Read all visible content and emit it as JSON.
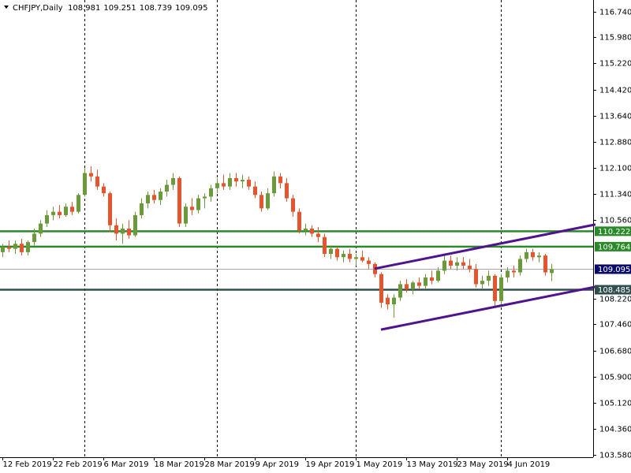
{
  "chart_data": {
    "type": "candlestick",
    "title": "CHFJPY,Daily",
    "header_values": [
      108.981,
      109.251,
      108.739,
      109.095
    ],
    "x": [
      "2019-02-12",
      "2019-02-13",
      "2019-02-14",
      "2019-02-15",
      "2019-02-18",
      "2019-02-19",
      "2019-02-20",
      "2019-02-21",
      "2019-02-22",
      "2019-02-25",
      "2019-02-26",
      "2019-02-27",
      "2019-02-28",
      "2019-03-01",
      "2019-03-04",
      "2019-03-05",
      "2019-03-06",
      "2019-03-07",
      "2019-03-08",
      "2019-03-11",
      "2019-03-12",
      "2019-03-13",
      "2019-03-14",
      "2019-03-15",
      "2019-03-18",
      "2019-03-19",
      "2019-03-20",
      "2019-03-21",
      "2019-03-22",
      "2019-03-25",
      "2019-03-26",
      "2019-03-27",
      "2019-03-28",
      "2019-03-29",
      "2019-04-01",
      "2019-04-02",
      "2019-04-03",
      "2019-04-04",
      "2019-04-05",
      "2019-04-08",
      "2019-04-09",
      "2019-04-10",
      "2019-04-11",
      "2019-04-12",
      "2019-04-15",
      "2019-04-16",
      "2019-04-17",
      "2019-04-18",
      "2019-04-19",
      "2019-04-22",
      "2019-04-23",
      "2019-04-24",
      "2019-04-25",
      "2019-04-26",
      "2019-04-29",
      "2019-04-30",
      "2019-05-01",
      "2019-05-02",
      "2019-05-03",
      "2019-05-06",
      "2019-05-07",
      "2019-05-08",
      "2019-05-09",
      "2019-05-10",
      "2019-05-13",
      "2019-05-14",
      "2019-05-15",
      "2019-05-16",
      "2019-05-17",
      "2019-05-20",
      "2019-05-21",
      "2019-05-22",
      "2019-05-23",
      "2019-05-24",
      "2019-05-27",
      "2019-05-28",
      "2019-05-29",
      "2019-05-30",
      "2019-05-31",
      "2019-06-03",
      "2019-06-04",
      "2019-06-05",
      "2019-06-06",
      "2019-06-07",
      "2019-06-10",
      "2019-06-11",
      "2019-06-12",
      "2019-06-13"
    ],
    "open": [
      109.6,
      109.75,
      109.7,
      109.85,
      109.6,
      109.9,
      110.15,
      110.45,
      110.7,
      110.8,
      110.7,
      110.95,
      110.8,
      111.3,
      111.95,
      111.85,
      111.55,
      111.35,
      110.4,
      110.15,
      110.3,
      110.1,
      110.7,
      111.05,
      111.3,
      111.15,
      111.4,
      111.6,
      111.8,
      110.45,
      110.95,
      110.85,
      111.2,
      111.25,
      111.5,
      111.65,
      111.55,
      111.8,
      111.7,
      111.75,
      111.55,
      111.3,
      110.9,
      111.35,
      111.85,
      111.65,
      111.2,
      110.8,
      110.25,
      110.3,
      110.15,
      110.05,
      109.55,
      109.7,
      109.45,
      109.55,
      109.4,
      109.45,
      109.35,
      109.25,
      108.95,
      108.25,
      108.05,
      108.25,
      108.65,
      108.5,
      108.7,
      108.6,
      108.85,
      108.75,
      109.05,
      109.35,
      109.2,
      109.3,
      109.2,
      109.1,
      108.65,
      108.75,
      108.9,
      108.15,
      108.85,
      109.05,
      109.0,
      109.4,
      109.6,
      109.45,
      109.5,
      108.981
    ],
    "high": [
      109.85,
      109.95,
      109.95,
      110.0,
      109.95,
      110.3,
      110.55,
      110.85,
      110.95,
      111.0,
      111.05,
      111.1,
      111.35,
      112.1,
      112.15,
      112.05,
      111.65,
      111.4,
      110.6,
      110.45,
      110.55,
      110.8,
      111.2,
      111.4,
      111.45,
      111.5,
      111.75,
      111.95,
      111.85,
      111.05,
      111.2,
      111.3,
      111.35,
      111.6,
      111.8,
      111.9,
      111.95,
      111.95,
      111.9,
      111.85,
      111.7,
      111.4,
      111.5,
      112.0,
      111.95,
      111.8,
      111.3,
      110.9,
      110.45,
      110.4,
      110.35,
      110.15,
      109.8,
      109.75,
      109.65,
      109.7,
      109.55,
      109.65,
      109.45,
      109.3,
      109.0,
      108.35,
      108.35,
      108.75,
      108.8,
      108.75,
      108.85,
      108.95,
      109.05,
      109.15,
      109.55,
      109.5,
      109.45,
      109.45,
      109.4,
      109.25,
      108.9,
      109.05,
      108.95,
      108.95,
      109.15,
      109.2,
      109.5,
      109.7,
      109.7,
      109.6,
      109.55,
      109.251
    ],
    "low": [
      109.45,
      109.6,
      109.55,
      109.5,
      109.5,
      109.8,
      110.05,
      110.35,
      110.55,
      110.6,
      110.65,
      110.7,
      110.75,
      111.25,
      111.7,
      111.45,
      111.25,
      110.2,
      109.95,
      109.85,
      110.0,
      110.05,
      110.6,
      110.9,
      111.05,
      111.0,
      111.25,
      111.45,
      110.35,
      110.35,
      110.7,
      110.75,
      110.9,
      111.1,
      111.35,
      111.45,
      111.45,
      111.55,
      111.5,
      111.45,
      111.2,
      110.8,
      110.85,
      111.25,
      111.5,
      111.1,
      110.65,
      110.15,
      110.1,
      110.05,
      109.9,
      109.45,
      109.4,
      109.35,
      109.3,
      109.3,
      109.2,
      109.3,
      109.1,
      108.85,
      107.95,
      107.9,
      107.65,
      108.15,
      108.4,
      108.35,
      108.5,
      108.5,
      108.65,
      108.7,
      108.95,
      109.1,
      109.05,
      109.1,
      109.0,
      108.55,
      108.5,
      108.6,
      108.0,
      108.05,
      108.7,
      108.85,
      108.9,
      109.3,
      109.35,
      109.3,
      108.9,
      108.739
    ],
    "close": [
      109.75,
      109.7,
      109.85,
      109.6,
      109.9,
      110.15,
      110.45,
      110.7,
      110.8,
      110.7,
      110.95,
      110.8,
      111.3,
      111.95,
      111.85,
      111.55,
      111.35,
      110.4,
      110.15,
      110.3,
      110.1,
      110.7,
      111.05,
      111.3,
      111.15,
      111.4,
      111.6,
      111.8,
      110.45,
      110.95,
      110.85,
      111.2,
      111.25,
      111.5,
      111.65,
      111.55,
      111.8,
      111.7,
      111.75,
      111.55,
      111.3,
      110.9,
      111.35,
      111.85,
      111.65,
      111.2,
      110.8,
      110.25,
      110.3,
      110.15,
      110.05,
      109.55,
      109.7,
      109.45,
      109.55,
      109.4,
      109.45,
      109.35,
      109.25,
      108.95,
      108.1,
      108.05,
      108.25,
      108.65,
      108.5,
      108.7,
      108.6,
      108.85,
      108.75,
      109.05,
      109.35,
      109.2,
      109.3,
      109.2,
      109.1,
      108.65,
      108.75,
      108.9,
      108.15,
      108.85,
      109.05,
      109.0,
      109.4,
      109.6,
      109.45,
      109.5,
      109.0,
      109.095
    ],
    "up_color": "#6b9a3b",
    "down_color": "#e4552d",
    "ylim": [
      103.51,
      117.09
    ],
    "yticks": [
      {
        "value": 116.74,
        "label": "116.740"
      },
      {
        "value": 115.98,
        "label": "115.980"
      },
      {
        "value": 115.22,
        "label": "115.220"
      },
      {
        "value": 114.42,
        "label": "114.420"
      },
      {
        "value": 113.64,
        "label": "113.640"
      },
      {
        "value": 112.88,
        "label": "112.880"
      },
      {
        "value": 112.1,
        "label": "112.100"
      },
      {
        "value": 111.34,
        "label": "111.340"
      },
      {
        "value": 110.56,
        "label": "110.560"
      },
      {
        "value": 108.22,
        "label": "108.220"
      },
      {
        "value": 107.46,
        "label": "107.460"
      },
      {
        "value": 106.68,
        "label": "106.680"
      },
      {
        "value": 105.9,
        "label": "105.900"
      },
      {
        "value": 105.12,
        "label": "105.120"
      },
      {
        "value": 104.36,
        "label": "104.360"
      },
      {
        "value": 103.58,
        "label": "103.580"
      }
    ],
    "xticks": [
      {
        "value": "2019-02-12",
        "label": "12 Feb 2019"
      },
      {
        "value": "2019-02-22",
        "label": "22 Feb 2019"
      },
      {
        "value": "2019-03-06",
        "label": "6 Mar 2019"
      },
      {
        "value": "2019-03-18",
        "label": "18 Mar 2019"
      },
      {
        "value": "2019-03-28",
        "label": "28 Mar 2019"
      },
      {
        "value": "2019-04-09",
        "label": "9 Apr 2019"
      },
      {
        "value": "2019-04-19",
        "label": "19 Apr 2019"
      },
      {
        "value": "2019-05-01",
        "label": "1 May 2019"
      },
      {
        "value": "2019-05-13",
        "label": "13 May 2019"
      },
      {
        "value": "2019-05-23",
        "label": "23 May 2019"
      },
      {
        "value": "2019-06-04",
        "label": "4 Jun 2019"
      }
    ],
    "separators": [
      "2019-03-01",
      "2019-04-01",
      "2019-05-01",
      "2019-06-03"
    ],
    "levels": [
      {
        "value": 110.222,
        "color": "#2a8a2a"
      },
      {
        "value": 109.764,
        "color": "#2a8a2a"
      },
      {
        "value": 108.485,
        "color": "#2f4f4f"
      }
    ],
    "current_price": 109.095,
    "current_price_color": "#0a0a6a",
    "trendlines": [
      {
        "color": "#4f1390",
        "ray": true,
        "points": [
          [
            "2019-05-06",
            109.11
          ],
          [
            "2019-06-07",
            110.01
          ]
        ]
      },
      {
        "color": "#4f1390",
        "ray": true,
        "points": [
          [
            "2019-05-07",
            107.3
          ],
          [
            "2019-06-07",
            108.16
          ]
        ]
      }
    ]
  }
}
